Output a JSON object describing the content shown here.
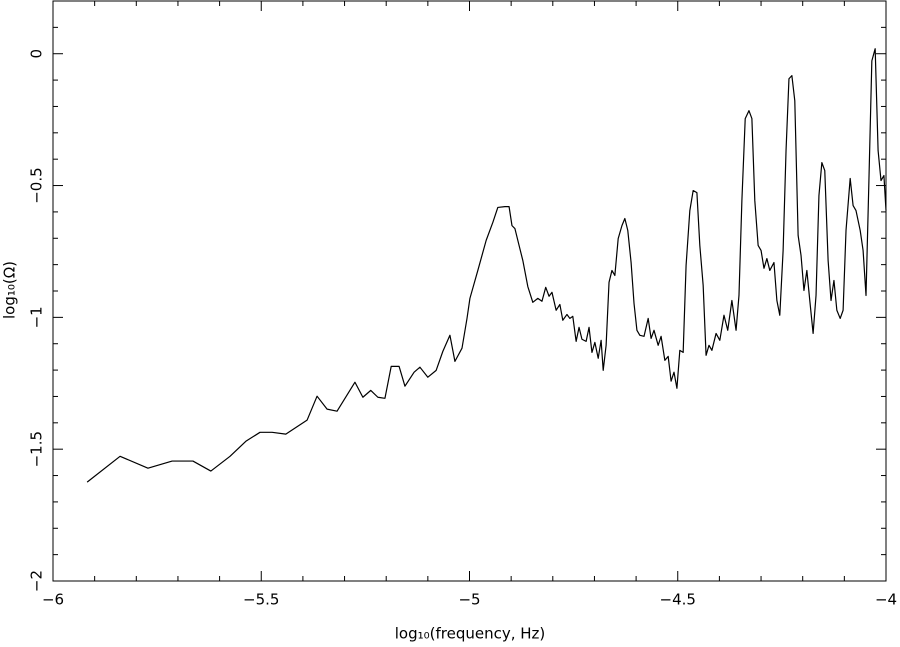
{
  "chart_data": {
    "type": "line",
    "x_label": "log₁₀(frequency, Hz)",
    "y_label": "log₁₀(Ω)",
    "color": "#000000",
    "xlim": [
      -6,
      -4
    ],
    "ylim": [
      -2,
      0.2
    ],
    "xticks": [
      {
        "value": -6,
        "label": "−6"
      },
      {
        "value": -5.5,
        "label": "−5.5"
      },
      {
        "value": -5,
        "label": "−5"
      },
      {
        "value": -4.5,
        "label": "−4.5"
      },
      {
        "value": -4,
        "label": "−4"
      }
    ],
    "yticks": [
      {
        "value": -2,
        "label": "−2"
      },
      {
        "value": -1.5,
        "label": "−1.5"
      },
      {
        "value": -1,
        "label": "−1"
      },
      {
        "value": -0.5,
        "label": "−0.5"
      },
      0
    ],
    "xminorticks": [
      -5.9,
      -5.8,
      -5.7,
      -5.6,
      -5.4,
      -5.3,
      -5.2,
      -5.1,
      -4.9,
      -4.8,
      -4.7,
      -4.6,
      -4.4,
      -4.3,
      -4.2,
      -4.1
    ],
    "yminorticks": [
      -1.9,
      -1.8,
      -1.7,
      -1.6,
      -1.4,
      -1.3,
      -1.2,
      -1.1,
      -0.9,
      -0.8,
      -0.7,
      -0.6,
      -0.4,
      -0.3,
      -0.2,
      -0.1,
      0.1
    ],
    "x": [
      -5.918,
      -5.839,
      -5.772,
      -5.714,
      -5.664,
      -5.621,
      -5.575,
      -5.537,
      -5.503,
      -5.474,
      -5.441,
      -5.39,
      -5.366,
      -5.342,
      -5.318,
      -5.275,
      -5.256,
      -5.237,
      -5.22,
      -5.203,
      -5.188,
      -5.169,
      -5.155,
      -5.133,
      -5.119,
      -5.1,
      -5.08,
      -5.064,
      -5.047,
      -5.035,
      -5.018,
      -5.006,
      -4.999,
      -4.98,
      -4.96,
      -4.944,
      -4.932,
      -4.915,
      -4.905,
      -4.898,
      -4.891,
      -4.881,
      -4.872,
      -4.86,
      -4.848,
      -4.836,
      -4.826,
      -4.817,
      -4.809,
      -4.802,
      -4.792,
      -4.783,
      -4.776,
      -4.766,
      -4.759,
      -4.752,
      -4.744,
      -4.737,
      -4.73,
      -4.72,
      -4.713,
      -4.706,
      -4.699,
      -4.691,
      -4.684,
      -4.679,
      -4.672,
      -4.665,
      -4.658,
      -4.651,
      -4.643,
      -4.634,
      -4.627,
      -4.62,
      -4.612,
      -4.605,
      -4.598,
      -4.591,
      -4.581,
      -4.571,
      -4.564,
      -4.557,
      -4.547,
      -4.54,
      -4.531,
      -4.523,
      -4.516,
      -4.509,
      -4.502,
      -4.495,
      -4.487,
      -4.48,
      -4.471,
      -4.463,
      -4.454,
      -4.447,
      -4.439,
      -4.432,
      -4.425,
      -4.418,
      -4.408,
      -4.399,
      -4.389,
      -4.38,
      -4.37,
      -4.36,
      -4.353,
      -4.346,
      -4.338,
      -4.329,
      -4.322,
      -4.315,
      -4.307,
      -4.3,
      -4.293,
      -4.286,
      -4.279,
      -4.269,
      -4.262,
      -4.255,
      -4.247,
      -4.24,
      -4.233,
      -4.226,
      -4.219,
      -4.211,
      -4.204,
      -4.197,
      -4.19,
      -4.183,
      -4.175,
      -4.168,
      -4.161,
      -4.154,
      -4.147,
      -4.139,
      -4.132,
      -4.125,
      -4.118,
      -4.11,
      -4.103,
      -4.096,
      -4.086,
      -4.079,
      -4.072,
      -4.062,
      -4.055,
      -4.048,
      -4.041,
      -4.034,
      -4.026,
      -4.019,
      -4.012,
      -4.005,
      -4.0
    ],
    "values": [
      -1.625,
      -1.527,
      -1.572,
      -1.545,
      -1.545,
      -1.583,
      -1.527,
      -1.47,
      -1.436,
      -1.436,
      -1.443,
      -1.39,
      -1.299,
      -1.348,
      -1.356,
      -1.246,
      -1.303,
      -1.277,
      -1.303,
      -1.307,
      -1.186,
      -1.186,
      -1.261,
      -1.208,
      -1.189,
      -1.227,
      -1.201,
      -1.129,
      -1.068,
      -1.167,
      -1.117,
      -1.004,
      -0.928,
      -0.822,
      -0.708,
      -0.64,
      -0.583,
      -0.58,
      -0.58,
      -0.652,
      -0.663,
      -0.727,
      -0.784,
      -0.883,
      -0.943,
      -0.928,
      -0.939,
      -0.886,
      -0.92,
      -0.905,
      -0.973,
      -0.951,
      -1.011,
      -0.989,
      -1.004,
      -0.996,
      -1.091,
      -1.038,
      -1.083,
      -1.091,
      -1.038,
      -1.133,
      -1.095,
      -1.155,
      -1.087,
      -1.201,
      -1.106,
      -0.867,
      -0.822,
      -0.841,
      -0.701,
      -0.652,
      -0.625,
      -0.67,
      -0.792,
      -0.947,
      -1.049,
      -1.068,
      -1.072,
      -1.004,
      -1.08,
      -1.049,
      -1.106,
      -1.072,
      -1.163,
      -1.148,
      -1.242,
      -1.208,
      -1.269,
      -1.125,
      -1.133,
      -0.803,
      -0.595,
      -0.519,
      -0.527,
      -0.727,
      -0.879,
      -1.144,
      -1.106,
      -1.125,
      -1.061,
      -1.087,
      -0.992,
      -1.049,
      -0.936,
      -1.049,
      -0.917,
      -0.557,
      -0.246,
      -0.216,
      -0.246,
      -0.557,
      -0.727,
      -0.746,
      -0.814,
      -0.777,
      -0.822,
      -0.792,
      -0.936,
      -0.992,
      -0.746,
      -0.367,
      -0.095,
      -0.083,
      -0.178,
      -0.689,
      -0.765,
      -0.898,
      -0.822,
      -0.936,
      -1.061,
      -0.917,
      -0.538,
      -0.413,
      -0.443,
      -0.784,
      -0.936,
      -0.86,
      -0.973,
      -1.004,
      -0.973,
      -0.67,
      -0.473,
      -0.576,
      -0.595,
      -0.67,
      -0.746,
      -0.917,
      -0.481,
      -0.027,
      0.019,
      -0.367,
      -0.481,
      -0.462,
      -0.595
    ]
  }
}
